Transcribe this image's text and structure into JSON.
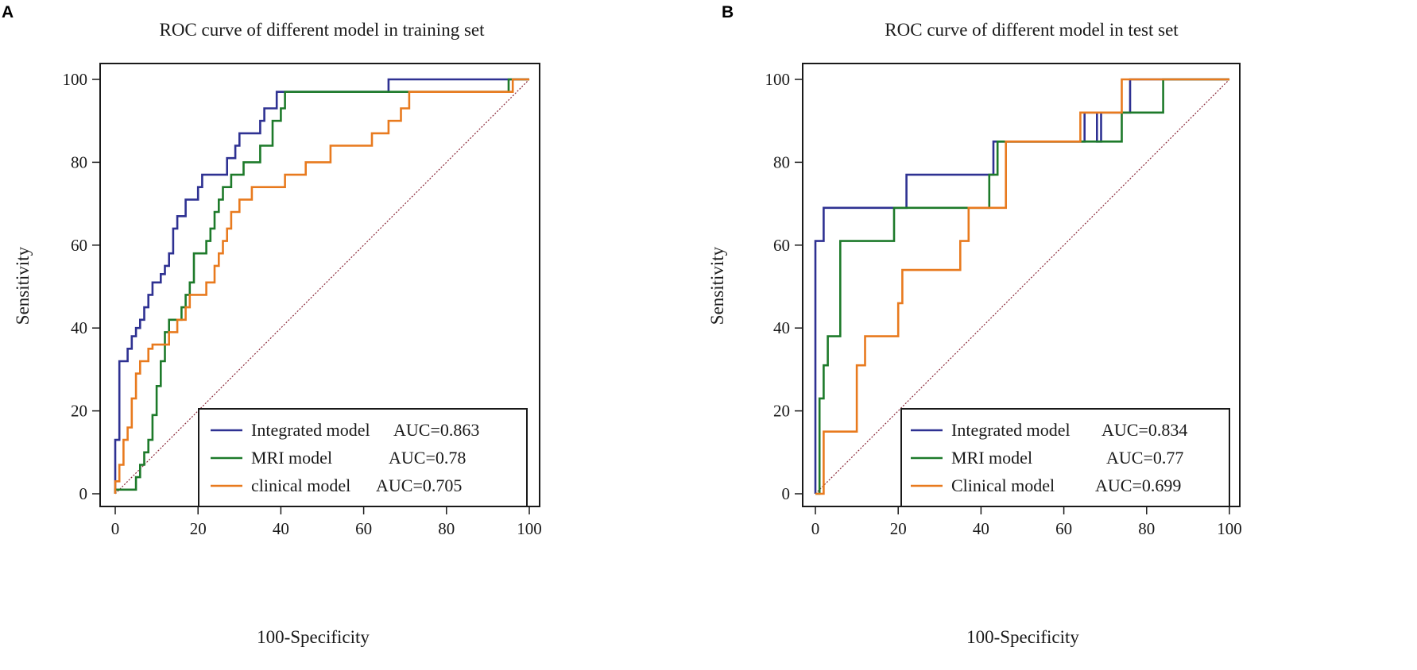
{
  "chart_data": [
    {
      "type": "line",
      "panel": "A",
      "title": "ROC curve of different model in training set",
      "xlabel": "100-Specificity",
      "ylabel": "Sensitivity",
      "xlim": [
        0,
        100
      ],
      "ylim": [
        0,
        100
      ],
      "xticks": [
        0,
        20,
        40,
        60,
        80,
        100
      ],
      "yticks": [
        0,
        20,
        40,
        60,
        80,
        100
      ],
      "legend": {
        "position": "bottom-right",
        "entries": [
          {
            "name": "Integrated model",
            "auc": "AUC=0.863"
          },
          {
            "name": "MRI model",
            "auc": "AUC=0.78"
          },
          {
            "name": "clinical model",
            "auc": "AUC=0.705"
          }
        ]
      },
      "series": [
        {
          "name": "Integrated model",
          "color": "#2e3192",
          "points": [
            [
              0,
              0
            ],
            [
              0,
              13
            ],
            [
              1,
              13
            ],
            [
              1,
              32
            ],
            [
              3,
              32
            ],
            [
              3,
              35
            ],
            [
              4,
              35
            ],
            [
              4,
              38
            ],
            [
              5,
              38
            ],
            [
              5,
              40
            ],
            [
              6,
              40
            ],
            [
              6,
              42
            ],
            [
              7,
              42
            ],
            [
              7,
              45
            ],
            [
              8,
              45
            ],
            [
              8,
              48
            ],
            [
              9,
              48
            ],
            [
              9,
              51
            ],
            [
              11,
              51
            ],
            [
              11,
              53
            ],
            [
              12,
              53
            ],
            [
              12,
              55
            ],
            [
              13,
              55
            ],
            [
              13,
              58
            ],
            [
              14,
              58
            ],
            [
              14,
              64
            ],
            [
              15,
              64
            ],
            [
              15,
              67
            ],
            [
              17,
              67
            ],
            [
              17,
              71
            ],
            [
              20,
              71
            ],
            [
              20,
              74
            ],
            [
              21,
              74
            ],
            [
              21,
              77
            ],
            [
              27,
              77
            ],
            [
              27,
              81
            ],
            [
              29,
              81
            ],
            [
              29,
              84
            ],
            [
              30,
              84
            ],
            [
              30,
              87
            ],
            [
              35,
              87
            ],
            [
              35,
              90
            ],
            [
              36,
              90
            ],
            [
              36,
              93
            ],
            [
              39,
              93
            ],
            [
              39,
              97
            ],
            [
              66,
              97
            ],
            [
              66,
              100
            ],
            [
              100,
              100
            ]
          ]
        },
        {
          "name": "MRI model",
          "color": "#1d7a2a",
          "points": [
            [
              0,
              0
            ],
            [
              0,
              1
            ],
            [
              5,
              1
            ],
            [
              5,
              4
            ],
            [
              6,
              4
            ],
            [
              6,
              7
            ],
            [
              7,
              7
            ],
            [
              7,
              10
            ],
            [
              8,
              10
            ],
            [
              8,
              13
            ],
            [
              9,
              13
            ],
            [
              9,
              19
            ],
            [
              10,
              19
            ],
            [
              10,
              26
            ],
            [
              11,
              26
            ],
            [
              11,
              32
            ],
            [
              12,
              32
            ],
            [
              12,
              39
            ],
            [
              13,
              39
            ],
            [
              13,
              42
            ],
            [
              16,
              42
            ],
            [
              16,
              45
            ],
            [
              17,
              45
            ],
            [
              17,
              48
            ],
            [
              18,
              48
            ],
            [
              18,
              51
            ],
            [
              19,
              51
            ],
            [
              19,
              58
            ],
            [
              22,
              58
            ],
            [
              22,
              61
            ],
            [
              23,
              61
            ],
            [
              23,
              64
            ],
            [
              24,
              64
            ],
            [
              24,
              68
            ],
            [
              25,
              68
            ],
            [
              25,
              71
            ],
            [
              26,
              71
            ],
            [
              26,
              74
            ],
            [
              28,
              74
            ],
            [
              28,
              77
            ],
            [
              31,
              77
            ],
            [
              31,
              80
            ],
            [
              35,
              80
            ],
            [
              35,
              84
            ],
            [
              38,
              84
            ],
            [
              38,
              90
            ],
            [
              40,
              90
            ],
            [
              40,
              93
            ],
            [
              41,
              93
            ],
            [
              41,
              97
            ],
            [
              95,
              97
            ],
            [
              95,
              100
            ],
            [
              100,
              100
            ]
          ]
        },
        {
          "name": "clinical model",
          "color": "#e87a1e",
          "points": [
            [
              0,
              0
            ],
            [
              0,
              3
            ],
            [
              1,
              3
            ],
            [
              1,
              7
            ],
            [
              2,
              7
            ],
            [
              2,
              13
            ],
            [
              3,
              13
            ],
            [
              3,
              16
            ],
            [
              4,
              16
            ],
            [
              4,
              23
            ],
            [
              5,
              23
            ],
            [
              5,
              29
            ],
            [
              6,
              29
            ],
            [
              6,
              32
            ],
            [
              8,
              32
            ],
            [
              8,
              35
            ],
            [
              9,
              35
            ],
            [
              9,
              36
            ],
            [
              13,
              36
            ],
            [
              13,
              39
            ],
            [
              15,
              39
            ],
            [
              15,
              42
            ],
            [
              17,
              42
            ],
            [
              17,
              45
            ],
            [
              18,
              45
            ],
            [
              18,
              48
            ],
            [
              22,
              48
            ],
            [
              22,
              51
            ],
            [
              24,
              51
            ],
            [
              24,
              55
            ],
            [
              25,
              55
            ],
            [
              25,
              58
            ],
            [
              26,
              58
            ],
            [
              26,
              61
            ],
            [
              27,
              61
            ],
            [
              27,
              64
            ],
            [
              28,
              64
            ],
            [
              28,
              68
            ],
            [
              30,
              68
            ],
            [
              30,
              71
            ],
            [
              33,
              71
            ],
            [
              33,
              74
            ],
            [
              41,
              74
            ],
            [
              41,
              77
            ],
            [
              46,
              77
            ],
            [
              46,
              80
            ],
            [
              52,
              80
            ],
            [
              52,
              84
            ],
            [
              62,
              84
            ],
            [
              62,
              87
            ],
            [
              66,
              87
            ],
            [
              66,
              90
            ],
            [
              69,
              90
            ],
            [
              69,
              93
            ],
            [
              71,
              93
            ],
            [
              71,
              97
            ],
            [
              96,
              97
            ],
            [
              96,
              100
            ],
            [
              100,
              100
            ]
          ]
        }
      ]
    },
    {
      "type": "line",
      "panel": "B",
      "title": "ROC curve of different model in test set",
      "xlabel": "100-Specificity",
      "ylabel": "Sensitivity",
      "xlim": [
        0,
        100
      ],
      "ylim": [
        0,
        100
      ],
      "xticks": [
        0,
        20,
        40,
        60,
        80,
        100
      ],
      "yticks": [
        0,
        20,
        40,
        60,
        80,
        100
      ],
      "legend": {
        "position": "bottom-right",
        "entries": [
          {
            "name": "Integrated model",
            "auc": "AUC=0.834"
          },
          {
            "name": "MRI model",
            "auc": "AUC=0.77"
          },
          {
            "name": "Clinical model",
            "auc": "AUC=0.699"
          }
        ]
      },
      "series": [
        {
          "name": "Integrated model",
          "color": "#2e3192",
          "points": [
            [
              0,
              0
            ],
            [
              0,
              61
            ],
            [
              2,
              61
            ],
            [
              2,
              69
            ],
            [
              22,
              69
            ],
            [
              22,
              77
            ],
            [
              43,
              77
            ],
            [
              43,
              85
            ],
            [
              44,
              85
            ],
            [
              44,
              85
            ],
            [
              65,
              85
            ],
            [
              65,
              92
            ],
            [
              68,
              92
            ],
            [
              68,
              85
            ],
            [
              69,
              85
            ],
            [
              69,
              92
            ],
            [
              76,
              92
            ],
            [
              76,
              100
            ],
            [
              100,
              100
            ]
          ]
        },
        {
          "name": "MRI model",
          "color": "#1d7a2a",
          "points": [
            [
              0,
              0
            ],
            [
              1,
              0
            ],
            [
              1,
              23
            ],
            [
              2,
              23
            ],
            [
              2,
              31
            ],
            [
              3,
              31
            ],
            [
              3,
              38
            ],
            [
              6,
              38
            ],
            [
              6,
              61
            ],
            [
              19,
              61
            ],
            [
              19,
              69
            ],
            [
              42,
              69
            ],
            [
              42,
              77
            ],
            [
              44,
              77
            ],
            [
              44,
              85
            ],
            [
              65,
              85
            ],
            [
              65,
              85
            ],
            [
              74,
              85
            ],
            [
              74,
              92
            ],
            [
              84,
              92
            ],
            [
              84,
              100
            ],
            [
              100,
              100
            ]
          ]
        },
        {
          "name": "Clinical model",
          "color": "#e87a1e",
          "points": [
            [
              0,
              0
            ],
            [
              2,
              0
            ],
            [
              2,
              15
            ],
            [
              10,
              15
            ],
            [
              10,
              31
            ],
            [
              12,
              31
            ],
            [
              12,
              38
            ],
            [
              20,
              38
            ],
            [
              20,
              46
            ],
            [
              21,
              46
            ],
            [
              21,
              54
            ],
            [
              35,
              54
            ],
            [
              35,
              61
            ],
            [
              37,
              61
            ],
            [
              37,
              69
            ],
            [
              44,
              69
            ],
            [
              44,
              69
            ],
            [
              46,
              69
            ],
            [
              46,
              85
            ],
            [
              64,
              85
            ],
            [
              64,
              92
            ],
            [
              74,
              92
            ],
            [
              74,
              100
            ],
            [
              100,
              100
            ]
          ]
        }
      ]
    }
  ]
}
